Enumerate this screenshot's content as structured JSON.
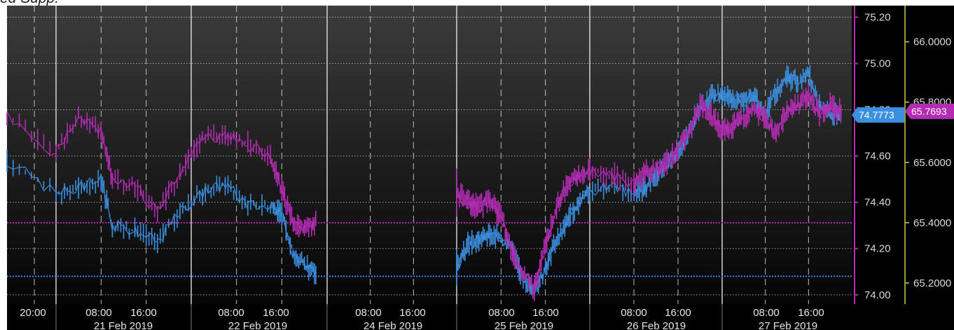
{
  "caption": "ed Supp.",
  "chart_data": {
    "type": "line",
    "title": "",
    "x_tick_labels": [
      "20:00",
      "08:00",
      "16:00",
      "08:00",
      "16:00",
      "08:00",
      "16:00",
      "08:00",
      "16:00",
      "08:00",
      "16:00",
      "08:00",
      "16:00"
    ],
    "x_date_labels": [
      "21 Feb 2019",
      "22 Feb 2019",
      "24 Feb 2019",
      "25 Feb 2019",
      "26 Feb 2019",
      "27 Feb 2019"
    ],
    "axis_primary": {
      "ticks": [
        "75.20",
        "75.00",
        "74.80",
        "74.60",
        "74.40",
        "74.20",
        "74.00"
      ],
      "range": [
        73.96,
        75.25
      ],
      "color": "#b32cb3"
    },
    "axis_secondary": {
      "ticks": [
        "66.0000",
        "65.8000",
        "65.6000",
        "65.4000",
        "65.2000"
      ],
      "range": [
        65.13,
        66.12
      ],
      "color": "#c8c84b"
    },
    "grid": true,
    "series": [
      {
        "color": "#3b8fe0",
        "axis": "primary",
        "last_value": "74.7773",
        "reference_level": 74.08,
        "points": [
          [
            "20 Feb 20:00",
            74.58
          ],
          [
            "21 Feb 00:00",
            74.44
          ],
          [
            "21 Feb 04:00",
            74.46
          ],
          [
            "21 Feb 08:00",
            74.5
          ],
          [
            "21 Feb 10:00",
            74.3
          ],
          [
            "21 Feb 14:00",
            74.28
          ],
          [
            "21 Feb 18:00",
            74.23
          ],
          [
            "21 Feb 22:00",
            74.36
          ],
          [
            "22 Feb 02:00",
            74.44
          ],
          [
            "22 Feb 06:00",
            74.48
          ],
          [
            "22 Feb 10:00",
            74.39
          ],
          [
            "22 Feb 14:00",
            74.38
          ],
          [
            "22 Feb 16:00",
            74.35
          ],
          [
            "22 Feb 18:00",
            74.18
          ],
          [
            "22 Feb 20:00",
            74.13
          ],
          [
            "22 Feb 22:00",
            74.09
          ],
          [
            "25 Feb 00:00",
            74.12
          ],
          [
            "25 Feb 02:00",
            74.22
          ],
          [
            "25 Feb 04:00",
            74.24
          ],
          [
            "25 Feb 06:00",
            74.26
          ],
          [
            "25 Feb 08:00",
            74.25
          ],
          [
            "25 Feb 10:00",
            74.2
          ],
          [
            "25 Feb 12:00",
            74.06
          ],
          [
            "25 Feb 14:00",
            74.02
          ],
          [
            "25 Feb 16:00",
            74.11
          ],
          [
            "25 Feb 18:00",
            74.24
          ],
          [
            "25 Feb 20:00",
            74.32
          ],
          [
            "25 Feb 22:00",
            74.4
          ],
          [
            "26 Feb 00:00",
            74.45
          ],
          [
            "26 Feb 04:00",
            74.47
          ],
          [
            "26 Feb 08:00",
            74.44
          ],
          [
            "26 Feb 10:00",
            74.46
          ],
          [
            "26 Feb 12:00",
            74.52
          ],
          [
            "26 Feb 14:00",
            74.56
          ],
          [
            "26 Feb 16:00",
            74.63
          ],
          [
            "26 Feb 18:00",
            74.7
          ],
          [
            "26 Feb 20:00",
            74.8
          ],
          [
            "26 Feb 22:00",
            74.86
          ],
          [
            "27 Feb 00:00",
            74.87
          ],
          [
            "27 Feb 02:00",
            74.84
          ],
          [
            "27 Feb 04:00",
            74.84
          ],
          [
            "27 Feb 06:00",
            74.85
          ],
          [
            "27 Feb 08:00",
            74.78
          ],
          [
            "27 Feb 10:00",
            74.88
          ],
          [
            "27 Feb 12:00",
            74.94
          ],
          [
            "27 Feb 14:00",
            74.92
          ],
          [
            "27 Feb 16:00",
            74.96
          ],
          [
            "27 Feb 18:00",
            74.82
          ],
          [
            "27 Feb 20:00",
            74.78
          ],
          [
            "27 Feb 22:00",
            74.78
          ]
        ]
      },
      {
        "color": "#b32cb3",
        "axis": "secondary",
        "last_value": "65.7693",
        "reference_level": 65.4,
        "points": [
          [
            "20 Feb 20:00",
            65.76
          ],
          [
            "21 Feb 00:00",
            65.63
          ],
          [
            "21 Feb 04:00",
            65.75
          ],
          [
            "21 Feb 08:00",
            65.7
          ],
          [
            "21 Feb 10:00",
            65.55
          ],
          [
            "21 Feb 14:00",
            65.52
          ],
          [
            "21 Feb 18:00",
            65.44
          ],
          [
            "21 Feb 22:00",
            65.56
          ],
          [
            "22 Feb 02:00",
            65.68
          ],
          [
            "22 Feb 06:00",
            65.69
          ],
          [
            "22 Feb 10:00",
            65.66
          ],
          [
            "22 Feb 14:00",
            65.62
          ],
          [
            "22 Feb 16:00",
            65.51
          ],
          [
            "22 Feb 18:00",
            65.4
          ],
          [
            "22 Feb 20:00",
            65.38
          ],
          [
            "22 Feb 22:00",
            65.4
          ],
          [
            "25 Feb 00:00",
            65.5
          ],
          [
            "25 Feb 02:00",
            65.47
          ],
          [
            "25 Feb 04:00",
            65.45
          ],
          [
            "25 Feb 06:00",
            65.47
          ],
          [
            "25 Feb 08:00",
            65.42
          ],
          [
            "25 Feb 10:00",
            65.3
          ],
          [
            "25 Feb 12:00",
            65.23
          ],
          [
            "25 Feb 14:00",
            65.18
          ],
          [
            "25 Feb 16:00",
            65.32
          ],
          [
            "25 Feb 18:00",
            65.45
          ],
          [
            "25 Feb 20:00",
            65.53
          ],
          [
            "25 Feb 22:00",
            65.55
          ],
          [
            "26 Feb 00:00",
            65.57
          ],
          [
            "26 Feb 04:00",
            65.56
          ],
          [
            "26 Feb 08:00",
            65.53
          ],
          [
            "26 Feb 10:00",
            65.57
          ],
          [
            "26 Feb 12:00",
            65.58
          ],
          [
            "26 Feb 14:00",
            65.6
          ],
          [
            "26 Feb 16:00",
            65.64
          ],
          [
            "26 Feb 18:00",
            65.7
          ],
          [
            "26 Feb 20:00",
            65.79
          ],
          [
            "26 Feb 22:00",
            65.76
          ],
          [
            "27 Feb 00:00",
            65.7
          ],
          [
            "27 Feb 02:00",
            65.72
          ],
          [
            "27 Feb 04:00",
            65.75
          ],
          [
            "27 Feb 06:00",
            65.78
          ],
          [
            "27 Feb 08:00",
            65.74
          ],
          [
            "27 Feb 10:00",
            65.7
          ],
          [
            "27 Feb 12:00",
            65.77
          ],
          [
            "27 Feb 14:00",
            65.79
          ],
          [
            "27 Feb 16:00",
            65.82
          ],
          [
            "27 Feb 18:00",
            65.76
          ],
          [
            "27 Feb 20:00",
            65.79
          ],
          [
            "27 Feb 22:00",
            65.77
          ]
        ]
      }
    ]
  }
}
